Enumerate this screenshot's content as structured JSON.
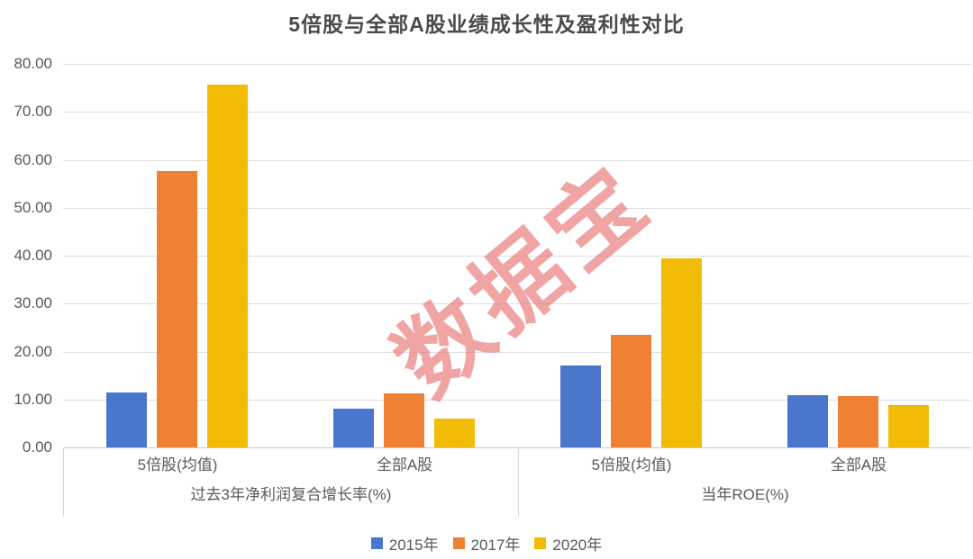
{
  "chart_data": {
    "type": "bar",
    "title": "5倍股与全部A股业绩成长性及盈利性对比",
    "ylim": [
      0,
      80
    ],
    "yticks": [
      0,
      10,
      20,
      30,
      40,
      50,
      60,
      70,
      80
    ],
    "ytick_decimals": 2,
    "grid": true,
    "legend_position": "bottom",
    "categories": [
      "5倍股(均值)",
      "全部A股",
      "5倍股(均值)",
      "全部A股"
    ],
    "group_labels": [
      "过去3年净利润复合增长率(%)",
      "当年ROE(%)"
    ],
    "series": [
      {
        "name": "2015年",
        "color": "#4A77CB",
        "values": [
          11.5,
          8.1,
          17.1,
          10.9
        ]
      },
      {
        "name": "2017年",
        "color": "#EE8133",
        "values": [
          57.7,
          11.2,
          23.4,
          10.7
        ]
      },
      {
        "name": "2020年",
        "color": "#F2BC06",
        "values": [
          75.7,
          6.0,
          39.5,
          8.9
        ]
      }
    ],
    "watermark": {
      "text": "数据宝",
      "color": "#E86E6E",
      "opacity": 0.62,
      "rotation_deg": -40
    }
  }
}
